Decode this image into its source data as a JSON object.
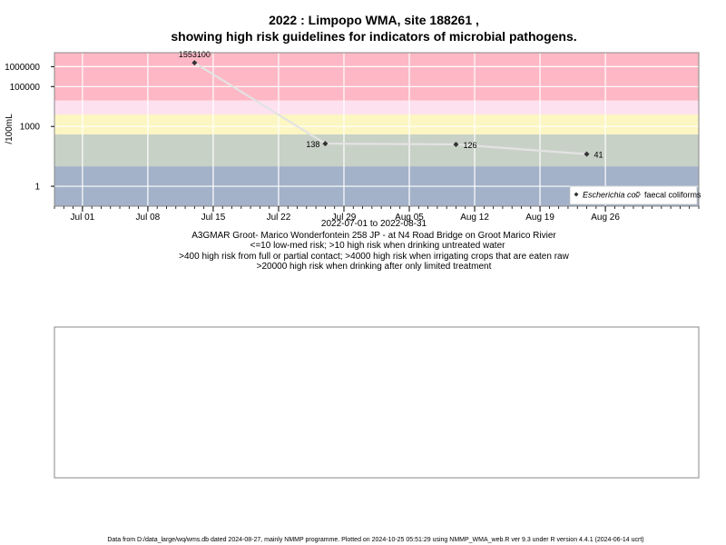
{
  "chart_data": {
    "type": "line",
    "title_line1": "2022 : Limpopo WMA, site 188261 ,",
    "title_line2": "showing high risk guidelines for indicators of microbial pathogens.",
    "ylabel": "/100mL",
    "y_scale": "log",
    "ylim": [
      0.1,
      5000000
    ],
    "y_ticks": [
      {
        "value": 1000000,
        "label": "1000000"
      },
      {
        "value": 100000,
        "label": "100000"
      },
      {
        "value": 1000,
        "label": "1000"
      },
      {
        "value": 1,
        "label": "1"
      }
    ],
    "xlim": [
      "2022-06-28",
      "2022-09-05"
    ],
    "x_ticks": [
      {
        "date": "2022-07-01",
        "label": "Jul 01"
      },
      {
        "date": "2022-07-08",
        "label": "Jul 08"
      },
      {
        "date": "2022-07-15",
        "label": "Jul 15"
      },
      {
        "date": "2022-07-22",
        "label": "Jul 22"
      },
      {
        "date": "2022-07-29",
        "label": "Jul 29"
      },
      {
        "date": "2022-08-05",
        "label": "Aug 05"
      },
      {
        "date": "2022-08-12",
        "label": "Aug 12"
      },
      {
        "date": "2022-08-19",
        "label": "Aug 19"
      },
      {
        "date": "2022-08-26",
        "label": "Aug 26"
      }
    ],
    "grid": true,
    "legend_position": "bottom-right",
    "risk_bands": [
      {
        "from": 0.1,
        "to": 10,
        "color": "#a3b2c9"
      },
      {
        "from": 10,
        "to": 400,
        "color": "#c8d1c6"
      },
      {
        "from": 400,
        "to": 4000,
        "color": "#fcf6c3"
      },
      {
        "from": 4000,
        "to": 20000,
        "color": "#fde1ee"
      },
      {
        "from": 20000,
        "to": 5000000,
        "color": "#feb8c5"
      }
    ],
    "series": [
      {
        "name": "Escherichia coli",
        "marker": "filled-diamond",
        "color": "#333333",
        "points": [
          {
            "x": "2022-07-13",
            "y": 1553100,
            "label": "1553100"
          },
          {
            "x": "2022-07-27",
            "y": 138,
            "label": "138"
          },
          {
            "x": "2022-08-10",
            "y": 126,
            "label": "126"
          },
          {
            "x": "2022-08-24",
            "y": 41,
            "label": "41"
          }
        ]
      },
      {
        "name": "faecal coliforms",
        "marker": "open-diamond",
        "color": "#333333",
        "points": []
      }
    ]
  },
  "captions": {
    "date_range": "2022-07-01 to 2022-08-31",
    "site": "A3GMAR Groot- Marico Wonderfontein 258 JP - at N4 Road Bridge on Groot Marico Rivier",
    "risk_line1": "<=10 low-med risk; >10 high risk when drinking untreated water",
    "risk_line2": ">400 high risk from full or partial contact; >4000 high risk when irrigating crops that are eaten raw",
    "risk_line3": ">20000 high risk when drinking after only limited treatment"
  },
  "footer": "Data from D:/data_large/wq/wms.db dated 2024-08-27, mainly NMMP programme. Plotted on 2024-10-25 05:51:29 using NMMP_WMA_web.R ver 9.3 under R version 4.4.1 (2024-06-14 ucrt)"
}
